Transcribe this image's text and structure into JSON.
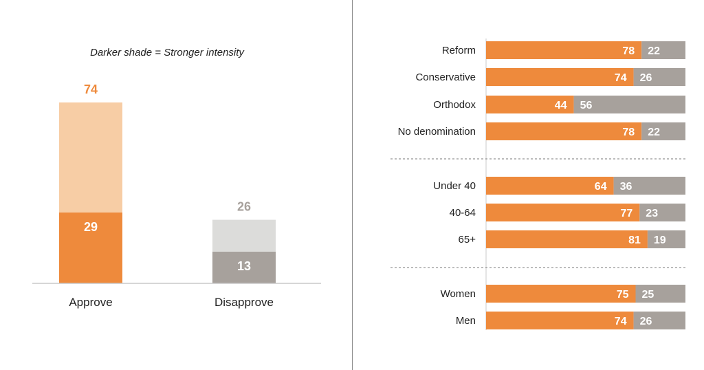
{
  "colors": {
    "orange": "#EE8A3C",
    "light_orange": "#F7CDA5",
    "gray": "#A7A19C",
    "light_gray": "#DCDCDA",
    "axis": "#C8C8C8",
    "text": "#222222",
    "divider": "#8a8a8a"
  },
  "chart_data": [
    {
      "type": "bar",
      "subtitle": "Darker shade = Stronger intensity",
      "categories": [
        "Approve",
        "Disapprove"
      ],
      "series": [
        {
          "values": [
            29,
            13
          ]
        },
        {
          "values": [
            45,
            13
          ]
        }
      ],
      "totals": [
        74,
        26
      ],
      "stacked": true,
      "ylim": [
        0,
        100
      ],
      "grid": false
    },
    {
      "type": "bar",
      "orientation": "horizontal",
      "stacked": true,
      "groups": [
        [
          "Reform",
          "Conservative",
          "Orthodox",
          "No denomination"
        ],
        [
          "Under 40",
          "40-64",
          "65+"
        ],
        [
          "Women",
          "Men"
        ]
      ],
      "categories": [
        "Reform",
        "Conservative",
        "Orthodox",
        "No denomination",
        "Under 40",
        "40-64",
        "65+",
        "Women",
        "Men"
      ],
      "series": [
        {
          "values": [
            78,
            74,
            44,
            78,
            64,
            77,
            81,
            75,
            74
          ]
        },
        {
          "values": [
            22,
            26,
            56,
            22,
            36,
            23,
            19,
            25,
            26
          ]
        }
      ],
      "xlim": [
        0,
        100
      ],
      "grid": false
    }
  ]
}
